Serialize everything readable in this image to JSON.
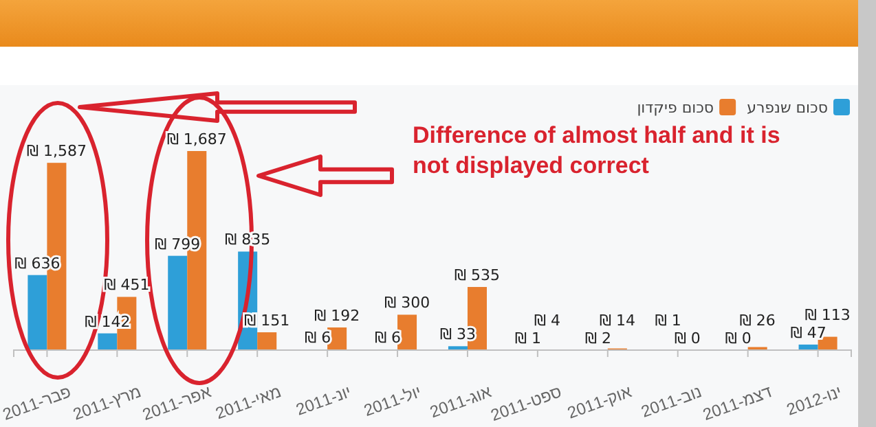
{
  "chart_data": {
    "type": "bar",
    "categories": [
      "2011-פבר",
      "2011-מרץ",
      "2011-אפר",
      "2011-מאי",
      "2011-יונ",
      "2011-יול",
      "2011-אוג",
      "2011-ספט",
      "2011-אוק",
      "2011-נוב",
      "2011-דצמ",
      "2012-ינו"
    ],
    "series": [
      {
        "name": "סכום שנפרע",
        "color": "#2e9fd8",
        "values": [
          636,
          142,
          799,
          835,
          6,
          6,
          33,
          1,
          2,
          1,
          0,
          47
        ],
        "value_labels": [
          "₪ 636",
          "₪ 142",
          "₪ 799",
          "₪ 835",
          "₪ 6",
          "₪ 6",
          "₪ 33",
          "₪ 1",
          "₪ 2",
          "₪ 1",
          "₪ 0",
          "₪ 47"
        ]
      },
      {
        "name": "סכום פיקדון",
        "color": "#e87d2e",
        "values": [
          1587,
          451,
          1687,
          151,
          192,
          300,
          535,
          4,
          14,
          0,
          26,
          113
        ],
        "value_labels": [
          "₪ 1,587",
          "₪ 451",
          "₪ 1,687",
          "₪ 151",
          "₪ 192",
          "₪ 300",
          "₪ 535",
          "₪ 4",
          "₪ 14",
          "₪ 0",
          "₪ 26",
          "₪ 113"
        ]
      }
    ],
    "legend": "top right",
    "annotations": [
      "Difference of almost half and it is not displayed correct"
    ]
  }
}
